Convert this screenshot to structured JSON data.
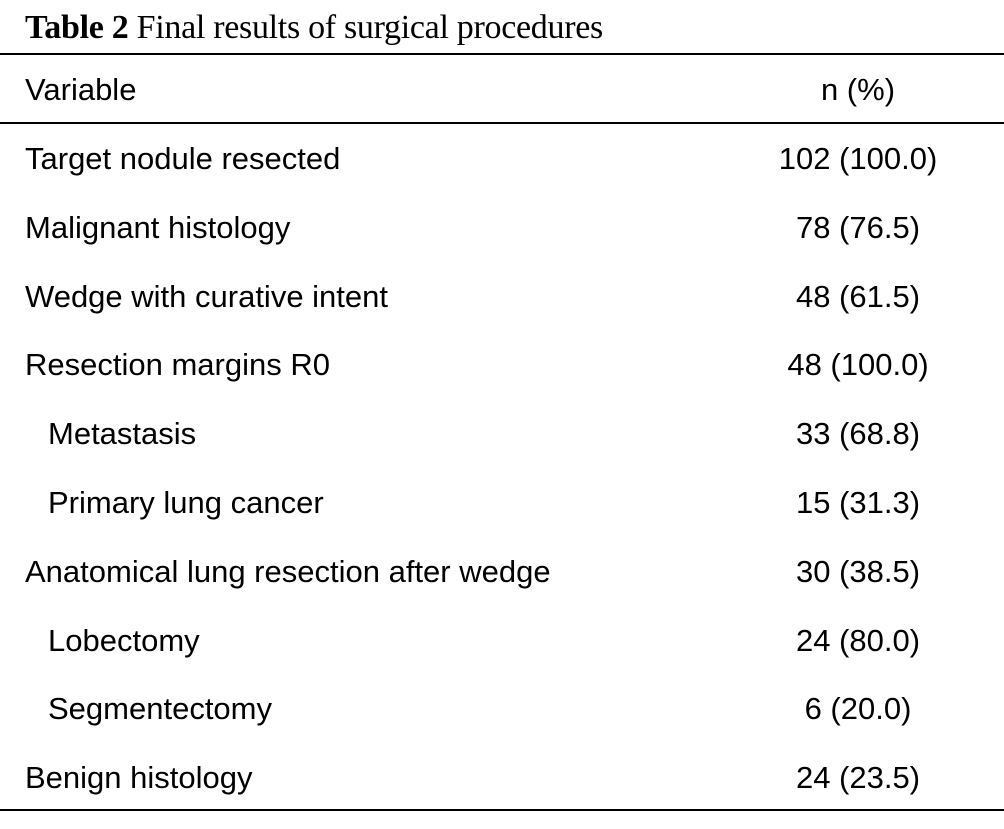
{
  "caption": {
    "label": "Table 2",
    "title": "Final results of surgical procedures"
  },
  "table": {
    "headers": {
      "variable": "Variable",
      "value": "n (%)"
    },
    "rows": [
      {
        "variable": "Target nodule resected",
        "value": "102 (100.0)",
        "indent": false
      },
      {
        "variable": "Malignant histology",
        "value": "78 (76.5)",
        "indent": false
      },
      {
        "variable": "Wedge with curative intent",
        "value": "48 (61.5)",
        "indent": false
      },
      {
        "variable": "Resection margins R0",
        "value": "48 (100.0)",
        "indent": false
      },
      {
        "variable": "Metastasis",
        "value": "33 (68.8)",
        "indent": true
      },
      {
        "variable": "Primary lung cancer",
        "value": "15 (31.3)",
        "indent": true
      },
      {
        "variable": "Anatomical lung resection after wedge",
        "value": "30 (38.5)",
        "indent": false
      },
      {
        "variable": "Lobectomy",
        "value": "24 (80.0)",
        "indent": true
      },
      {
        "variable": "Segmentectomy",
        "value": "6 (20.0)",
        "indent": true
      },
      {
        "variable": "Benign histology",
        "value": "24 (23.5)",
        "indent": false
      }
    ]
  }
}
